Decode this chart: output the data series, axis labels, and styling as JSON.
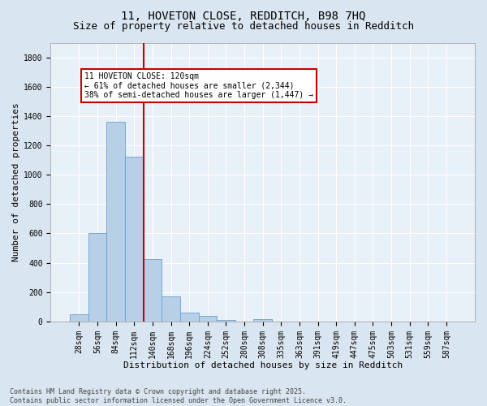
{
  "title_line1": "11, HOVETON CLOSE, REDDITCH, B98 7HQ",
  "title_line2": "Size of property relative to detached houses in Redditch",
  "xlabel": "Distribution of detached houses by size in Redditch",
  "ylabel": "Number of detached properties",
  "footnote": "Contains HM Land Registry data © Crown copyright and database right 2025.\nContains public sector information licensed under the Open Government Licence v3.0.",
  "categories": [
    "28sqm",
    "56sqm",
    "84sqm",
    "112sqm",
    "140sqm",
    "168sqm",
    "196sqm",
    "224sqm",
    "252sqm",
    "280sqm",
    "308sqm",
    "335sqm",
    "363sqm",
    "391sqm",
    "419sqm",
    "447sqm",
    "475sqm",
    "503sqm",
    "531sqm",
    "559sqm",
    "587sqm"
  ],
  "values": [
    50,
    605,
    1360,
    1125,
    425,
    170,
    60,
    38,
    12,
    0,
    18,
    0,
    0,
    0,
    0,
    0,
    0,
    0,
    0,
    0,
    0
  ],
  "bar_color": "#b8cfe8",
  "bar_edge_color": "#6ba0cc",
  "bar_width": 1.0,
  "vline_color": "#cc0000",
  "vline_x_index": 3.5,
  "annotation_text": "11 HOVETON CLOSE: 120sqm\n← 61% of detached houses are smaller (2,344)\n38% of semi-detached houses are larger (1,447) →",
  "annotation_box_color": "#ffffff",
  "annotation_box_edge": "#cc0000",
  "ylim": [
    0,
    1900
  ],
  "yticks": [
    0,
    200,
    400,
    600,
    800,
    1000,
    1200,
    1400,
    1600,
    1800
  ],
  "bg_color": "#d9e5f0",
  "plot_bg_color": "#e8f0f8",
  "grid_color": "#ffffff",
  "title_fontsize": 10,
  "subtitle_fontsize": 9,
  "tick_fontsize": 7,
  "ylabel_fontsize": 8,
  "xlabel_fontsize": 8,
  "footnote_fontsize": 6,
  "annot_fontsize": 7
}
